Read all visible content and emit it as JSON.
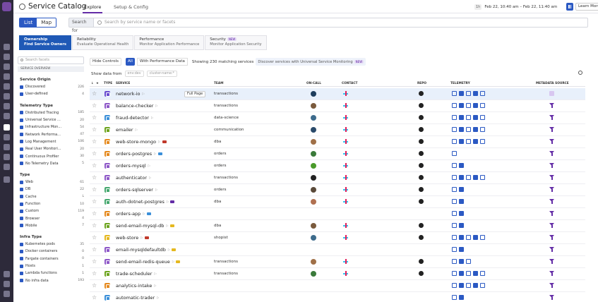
{
  "header": {
    "title": "Service Catalog",
    "tabs": [
      "Explore",
      "Setup & Config"
    ],
    "time_zone": "1h",
    "time_range": "Feb 22, 10:40 am – Feb 22, 11:40 am",
    "learn_more": "Learn More"
  },
  "toolbar": {
    "list_label": "List",
    "map_label": "Map",
    "search_for": "Search for",
    "search_placeholder": "Search by service name or facets"
  },
  "lenses": [
    {
      "title": "Ownership",
      "subtitle": "Find Service Owners",
      "active": true
    },
    {
      "title": "Reliability",
      "subtitle": "Evaluate Operational Health"
    },
    {
      "title": "Performance",
      "subtitle": "Monitor Application Performance"
    },
    {
      "title": "Security",
      "subtitle": "Monitor Application Security",
      "badge": "NEW"
    }
  ],
  "facets": {
    "search_placeholder": "Search facets",
    "section_header": "SERVICE OVERVIEW",
    "groups": [
      {
        "title": "Service Origin",
        "items": [
          {
            "label": "Discovered",
            "count": "226"
          },
          {
            "label": "User-defined",
            "count": "4"
          }
        ]
      },
      {
        "title": "Telemetry Type",
        "items": [
          {
            "label": "Distributed Tracing",
            "count": "185"
          },
          {
            "label": "Universal Service ...",
            "count": "20"
          },
          {
            "label": "Infrastructure Mon...",
            "count": "54"
          },
          {
            "label": "Network Performa...",
            "count": "47"
          },
          {
            "label": "Log Management",
            "count": "106"
          },
          {
            "label": "Real User Monitori...",
            "count": "20"
          },
          {
            "label": "Continuous Profiler",
            "count": "30"
          },
          {
            "label": "No Telemetry Data",
            "count": "5"
          }
        ]
      },
      {
        "title": "Type",
        "items": [
          {
            "label": "Web",
            "count": "61"
          },
          {
            "label": "DB",
            "count": "22"
          },
          {
            "label": "Cache",
            "count": "L"
          },
          {
            "label": "Function",
            "count": "10"
          },
          {
            "label": "Custom",
            "count": "119"
          },
          {
            "label": "Browser",
            "count": "4"
          },
          {
            "label": "Mobile",
            "count": "7"
          }
        ]
      },
      {
        "title": "Infra Type",
        "items": [
          {
            "label": "Kubernetes pods",
            "count": "35"
          },
          {
            "label": "Docker containers",
            "count": "0"
          },
          {
            "label": "Fargate containers",
            "count": "0"
          },
          {
            "label": "Hosts",
            "count": "1"
          },
          {
            "label": "Lambda functions",
            "count": "1"
          },
          {
            "label": "No infra data",
            "count": "193"
          }
        ]
      }
    ]
  },
  "controls": {
    "hide_controls": "Hide Controls",
    "all": "All",
    "with_perf": "With Performance Data",
    "showing": "Showing 230 matching services",
    "discover": "Discover services with Universal Service Monitoring",
    "discover_badge": "NEW",
    "show_data_from": "Show data from",
    "env_placeholder": "env:dev",
    "cluster_placeholder": "cluster-name:*"
  },
  "table": {
    "headers": {
      "type": "TYPE",
      "service": "SERVICE",
      "team": "TEAM",
      "oncall": "ON-CALL",
      "contact": "CONTACT",
      "repo": "REPO",
      "telemetry": "TELEMETRY",
      "metadata": "METADATA SOURCE"
    },
    "full_page": "Full Page",
    "rows": [
      {
        "service": "network-io",
        "team": "transactions",
        "color": "#6a4dcf",
        "oncall": true,
        "contact": true,
        "repo": true,
        "tel": 5,
        "meta": "yaml",
        "selected": true
      },
      {
        "service": "balance-checker",
        "team": "transactions",
        "color": "#8e58c8",
        "oncall": true,
        "contact": true,
        "repo": true,
        "tel": 5,
        "meta": "dd"
      },
      {
        "service": "fraud-detector",
        "team": "data-science",
        "color": "#3a8fd9",
        "oncall": true,
        "contact": true,
        "repo": true,
        "tel": 5,
        "meta": "dd"
      },
      {
        "service": "emailer",
        "team": "communication",
        "color": "#6ea520",
        "oncall": true,
        "contact": true,
        "repo": true,
        "tel": 5,
        "meta": "dd"
      },
      {
        "service": "web-store-mongo",
        "team": "dba",
        "color": "#e58a1f",
        "oncall": true,
        "contact": true,
        "repo": true,
        "tel": 5,
        "meta": "dd",
        "tag": "#c0392b"
      },
      {
        "service": "orders-postgres",
        "team": "orders",
        "color": "#e58a1f",
        "oncall": true,
        "contact": true,
        "repo": true,
        "tel": 1,
        "meta": "dd",
        "tag": "#3a8fd9"
      },
      {
        "service": "orders-mysql",
        "team": "orders",
        "color": "#8e58c8",
        "oncall": true,
        "contact": true,
        "repo": true,
        "tel": 2,
        "meta": "dd"
      },
      {
        "service": "authenticator",
        "team": "transactions",
        "color": "#8e58c8",
        "oncall": true,
        "contact": true,
        "repo": true,
        "tel": 5,
        "meta": "dd"
      },
      {
        "service": "orders-sqlserver",
        "team": "orders",
        "color": "#46a86f",
        "oncall": true,
        "contact": true,
        "repo": true,
        "tel": 2,
        "meta": "dd"
      },
      {
        "service": "auth-dotnet-postgres",
        "team": "dba",
        "color": "#46a86f",
        "oncall": true,
        "contact": true,
        "repo": true,
        "tel": 2,
        "meta": "dd",
        "tag": "#632ca6"
      },
      {
        "service": "orders-app",
        "team": "",
        "color": "#e58a1f",
        "oncall": false,
        "contact": false,
        "repo": false,
        "tel": 2,
        "meta": "dd",
        "tag": "#3a8fd9"
      },
      {
        "service": "send-email-mysql-db",
        "team": "dba",
        "color": "#6ea520",
        "oncall": true,
        "contact": true,
        "repo": true,
        "tel": 2,
        "meta": "dd",
        "tag": "#e5b81f"
      },
      {
        "service": "web-store",
        "team": "shopist",
        "color": "#e5b81f",
        "oncall": true,
        "contact": true,
        "repo": true,
        "tel": 5,
        "meta": "dd",
        "tag": "#c0392b"
      },
      {
        "service": "email-mysqldefaultdb",
        "team": "",
        "color": "#8e58c8",
        "oncall": false,
        "contact": false,
        "repo": false,
        "tel": 2,
        "meta": "dd",
        "tag": "#e5b81f"
      },
      {
        "service": "send-email-redis-queue",
        "team": "transactions",
        "color": "#8e58c8",
        "oncall": true,
        "contact": true,
        "repo": true,
        "tel": 3,
        "meta": "dd",
        "tag": "#e5b81f"
      },
      {
        "service": "trade-scheduler",
        "team": "transactions",
        "color": "#6ea520",
        "oncall": true,
        "contact": true,
        "repo": true,
        "tel": 5,
        "meta": "dd"
      },
      {
        "service": "analytics-intake",
        "team": "",
        "color": "#e58a1f",
        "oncall": false,
        "contact": false,
        "repo": false,
        "tel": 5,
        "meta": "dd"
      },
      {
        "service": "automatic-trader",
        "team": "",
        "color": "#3a8fd9",
        "oncall": false,
        "contact": false,
        "repo": false,
        "tel": 2,
        "meta": "dd"
      }
    ]
  }
}
